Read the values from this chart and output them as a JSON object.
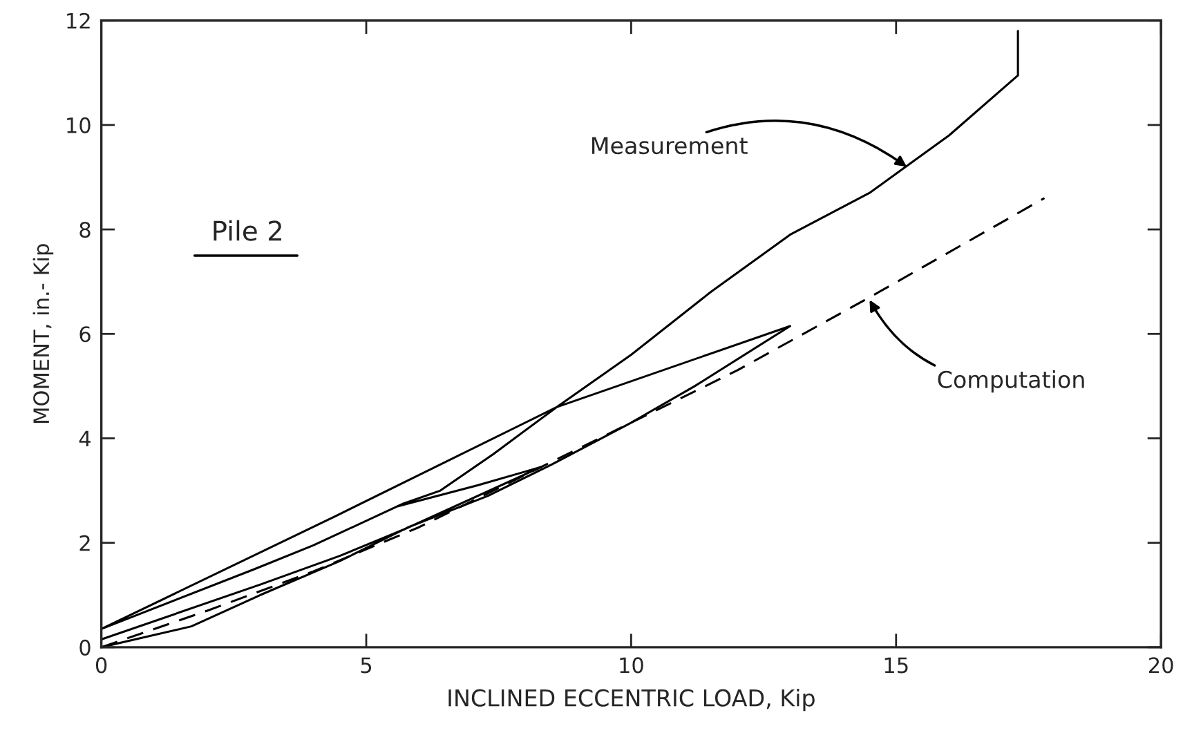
{
  "chart_data": {
    "type": "line",
    "xlabel": "INCLINED ECCENTRIC LOAD, Kip",
    "ylabel": "MOMENT, in.- Kip",
    "xlim": [
      0,
      20
    ],
    "xticks": [
      0,
      5,
      10,
      15,
      20
    ],
    "ylim": [
      0,
      12
    ],
    "yticks": [
      0,
      2,
      4,
      6,
      8,
      10,
      12
    ],
    "grid": false,
    "series": [
      {
        "color": "#000000",
        "line_style": "solid",
        "x": [
          0,
          1.7,
          3,
          4.5,
          5.8,
          7.3,
          8.5,
          10,
          11.2,
          13,
          8.6,
          4.4,
          0,
          2.9,
          4,
          5.7,
          6.4,
          7.4,
          8.6,
          10,
          11.5,
          13,
          14.5,
          16,
          17.3,
          17.3,
          null,
          5.6,
          7.1,
          8.3,
          5.7,
          4.5,
          3,
          0
        ],
        "values": [
          0,
          0.4,
          1.0,
          1.65,
          2.3,
          2.9,
          3.5,
          4.3,
          5.0,
          6.15,
          4.6,
          2.5,
          0.35,
          1.5,
          1.95,
          2.75,
          3.0,
          3.7,
          4.6,
          5.6,
          6.8,
          7.9,
          8.7,
          9.8,
          10.95,
          11.8,
          null,
          2.7,
          3.1,
          3.45,
          2.25,
          1.75,
          1.2,
          0.15
        ]
      },
      {
        "color": "#000000",
        "line_style": "dashed",
        "x": [
          0,
          2,
          4,
          6,
          8,
          10,
          12,
          14.5,
          17.8
        ],
        "values": [
          0,
          0.7,
          1.45,
          2.3,
          3.3,
          4.3,
          5.3,
          6.7,
          8.6
        ]
      }
    ],
    "annotations": [
      {
        "text": "Measurement",
        "x": 15.2,
        "y": 9.2
      },
      {
        "text": "Computation",
        "x": 14.5,
        "y": 6.65
      },
      "Pile 2"
    ]
  }
}
